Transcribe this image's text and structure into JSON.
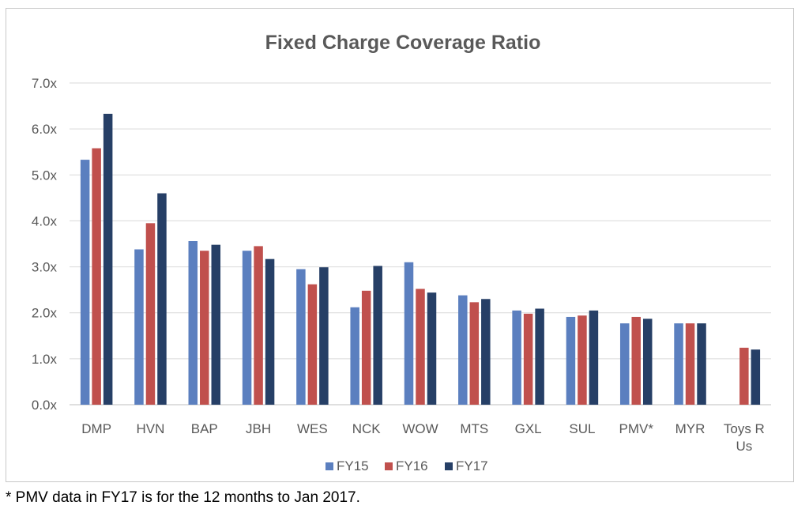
{
  "chart_data": {
    "type": "bar",
    "title": "Fixed Charge Coverage Ratio",
    "xlabel": "",
    "ylabel": "",
    "ylim": [
      0,
      7
    ],
    "yticks": [
      "0.0x",
      "1.0x",
      "2.0x",
      "3.0x",
      "4.0x",
      "5.0x",
      "6.0x",
      "7.0x"
    ],
    "grid": true,
    "legend_position": "bottom",
    "categories": [
      "DMP",
      "HVN",
      "BAP",
      "JBH",
      "WES",
      "NCK",
      "WOW",
      "MTS",
      "GXL",
      "SUL",
      "PMV*",
      "MYR",
      "Toys R Us"
    ],
    "category_lines": [
      [
        "DMP"
      ],
      [
        "HVN"
      ],
      [
        "BAP"
      ],
      [
        "JBH"
      ],
      [
        "WES"
      ],
      [
        "NCK"
      ],
      [
        "WOW"
      ],
      [
        "MTS"
      ],
      [
        "GXL"
      ],
      [
        "SUL"
      ],
      [
        "PMV*"
      ],
      [
        "MYR"
      ],
      [
        "Toys R",
        "Us"
      ]
    ],
    "series": [
      {
        "name": "FY15",
        "color": "#5b7fbf",
        "values": [
          5.33,
          3.38,
          3.56,
          3.35,
          2.95,
          2.12,
          3.1,
          2.38,
          2.05,
          1.91,
          1.77,
          1.77,
          null
        ]
      },
      {
        "name": "FY16",
        "color": "#c0504d",
        "values": [
          5.58,
          3.95,
          3.35,
          3.45,
          2.62,
          2.48,
          2.52,
          2.23,
          1.98,
          1.94,
          1.91,
          1.77,
          1.24
        ]
      },
      {
        "name": "FY17",
        "color": "#263f66",
        "values": [
          6.33,
          4.6,
          3.48,
          3.17,
          2.99,
          3.02,
          2.44,
          2.3,
          2.09,
          2.05,
          1.87,
          1.77,
          1.2
        ]
      }
    ]
  },
  "footnote": "* PMV data in FY17 is for the 12 months to Jan 2017."
}
